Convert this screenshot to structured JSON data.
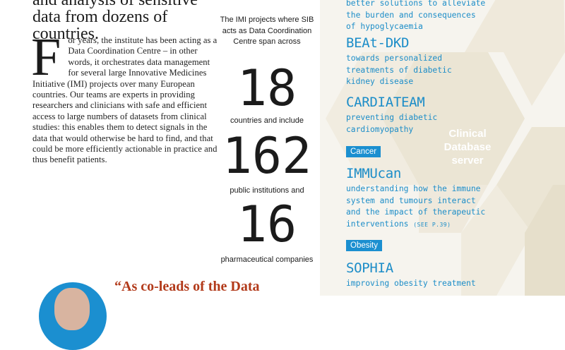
{
  "left": {
    "heading": "and analysis of sensitive data from dozens of countries.",
    "dropcap": "F",
    "body": "or years, the institute has been acting as a Data Coordination Centre – in other words, it orchestrates data management for several large Innovative Medicines Initiative (IMI) projects over many European countries. Our teams are experts in providing researchers and clinicians with safe and efficient access to large numbers of datasets from clinical studies: this enables them to detect signals in the data that would otherwise be hard to find, and that could be more efficiently actionable in practice and thus benefit patients.",
    "quote": "“As co-leads of the Data"
  },
  "stats": {
    "intro": "The IMI projects where SIB acts as Data Coordination Centre span across",
    "countries_value": "18",
    "countries_caption": "countries and include",
    "institutions_value": "162",
    "institutions_caption": "public institutions and",
    "companies_value": "16",
    "companies_caption": "pharmaceutical companies"
  },
  "projects": {
    "top_desc_1": "better solutions to alleviate",
    "top_desc_2": "the burden and consequences",
    "top_desc_3": "of hypoglycaemia",
    "beat_name": "BEAt-DKD",
    "beat_desc_1": "towards personalized",
    "beat_desc_2": "treatments of diabetic",
    "beat_desc_3": "kidney disease",
    "cardia_name": "CARDIATEAM",
    "cardia_desc_1": "preventing diabetic",
    "cardia_desc_2": "cardiomyopathy",
    "cancer_tag": "Cancer",
    "immucan_name": "IMMUcan",
    "immucan_desc_1": "understanding how the immune",
    "immucan_desc_2": "system and tumours interact",
    "immucan_desc_3": "and the impact of therapeutic",
    "immucan_desc_4": "interventions",
    "immucan_ref": "(SEE P.39)",
    "obesity_tag": "Obesity",
    "sophia_name": "SOPHIA",
    "sophia_desc_1": "improving obesity treatment"
  },
  "server": {
    "line1": "Clinical",
    "line2": "Database",
    "line3": "server"
  },
  "colors": {
    "accent_blue": "#1b8fd0",
    "quote_red": "#b23a1a",
    "hex_beige": "#e8e1cf"
  }
}
